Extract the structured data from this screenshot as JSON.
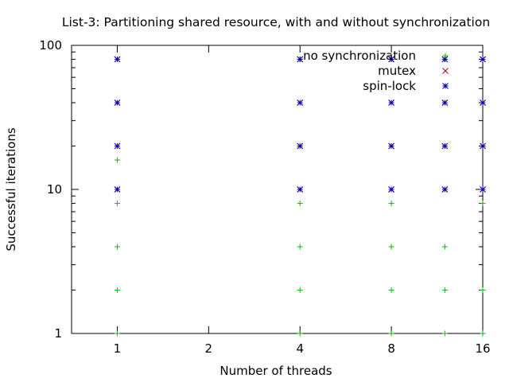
{
  "chart_data": {
    "type": "scatter",
    "title": "List-3: Partitioning shared resource, with and without synchronization",
    "xlabel": "Number of threads",
    "ylabel": "Successful iterations",
    "x_scale": "log2",
    "y_scale": "log10",
    "xlim": [
      0.7071,
      16
    ],
    "ylim": [
      1,
      100
    ],
    "x_ticks": [
      1,
      2,
      4,
      8,
      16
    ],
    "y_ticks": [
      1,
      10,
      100
    ],
    "grid": false,
    "legend_position": "top-right",
    "series": [
      {
        "name": "no synchronization",
        "marker": "plus",
        "color": "#00c000",
        "points": [
          [
            1,
            1
          ],
          [
            1,
            2
          ],
          [
            1,
            4
          ],
          [
            1,
            8
          ],
          [
            1,
            16
          ],
          [
            4,
            1
          ],
          [
            4,
            2
          ],
          [
            4,
            4
          ],
          [
            4,
            8
          ],
          [
            4,
            80
          ],
          [
            8,
            1
          ],
          [
            8,
            2
          ],
          [
            8,
            4
          ],
          [
            8,
            8
          ],
          [
            8,
            80
          ],
          [
            12,
            1
          ],
          [
            12,
            2
          ],
          [
            12,
            4
          ],
          [
            12,
            80
          ],
          [
            16,
            1
          ],
          [
            16,
            2
          ],
          [
            16,
            8
          ],
          [
            16,
            80
          ]
        ]
      },
      {
        "name": "mutex",
        "marker": "cross",
        "color": "#c00000",
        "points": [
          [
            1,
            10
          ],
          [
            1,
            20
          ],
          [
            1,
            40
          ],
          [
            1,
            80
          ],
          [
            4,
            10
          ],
          [
            4,
            20
          ],
          [
            4,
            40
          ],
          [
            4,
            80
          ],
          [
            8,
            10
          ],
          [
            8,
            20
          ],
          [
            8,
            40
          ],
          [
            8,
            80
          ],
          [
            12,
            10
          ],
          [
            12,
            20
          ],
          [
            12,
            40
          ],
          [
            12,
            80
          ],
          [
            16,
            10
          ],
          [
            16,
            20
          ],
          [
            16,
            40
          ],
          [
            16,
            80
          ]
        ]
      },
      {
        "name": "spin-lock",
        "marker": "star",
        "color": "#0000c0",
        "points": [
          [
            1,
            10
          ],
          [
            1,
            20
          ],
          [
            1,
            40
          ],
          [
            1,
            80
          ],
          [
            4,
            10
          ],
          [
            4,
            20
          ],
          [
            4,
            40
          ],
          [
            4,
            80
          ],
          [
            8,
            10
          ],
          [
            8,
            20
          ],
          [
            8,
            40
          ],
          [
            8,
            80
          ],
          [
            12,
            10
          ],
          [
            12,
            20
          ],
          [
            12,
            40
          ],
          [
            12,
            80
          ],
          [
            16,
            10
          ],
          [
            16,
            20
          ],
          [
            16,
            40
          ],
          [
            16,
            80
          ]
        ]
      }
    ]
  }
}
